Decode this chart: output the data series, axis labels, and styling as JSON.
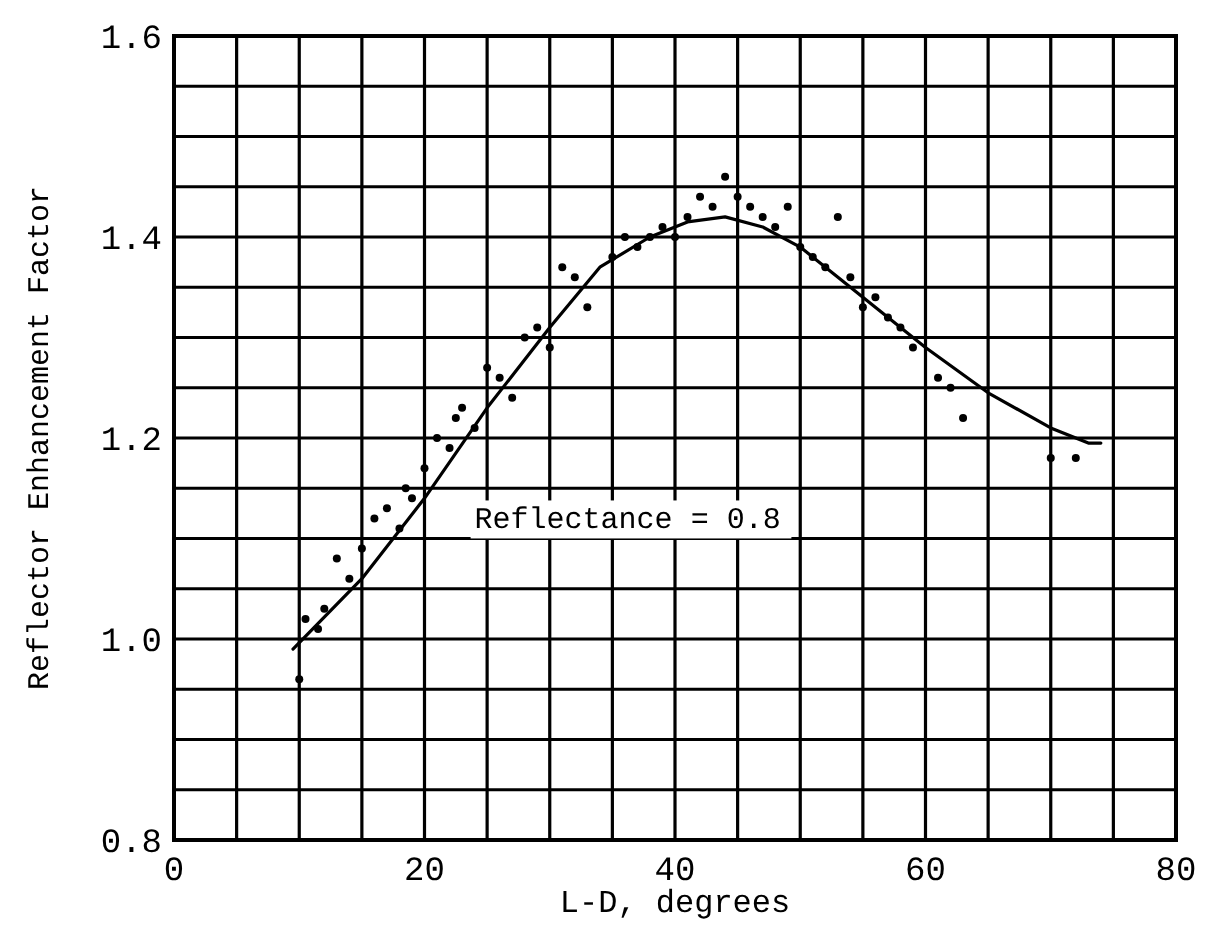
{
  "chart_data": {
    "type": "line",
    "xlabel": "L-D, degrees",
    "ylabel": "Reflector Enhancement Factor",
    "xlim": [
      0,
      80
    ],
    "ylim": [
      0.8,
      1.6
    ],
    "xticks": [
      0,
      {
        "value": 5,
        "label": null
      },
      {
        "value": 10,
        "label": null
      },
      {
        "value": 15,
        "label": null
      },
      20,
      {
        "value": 25,
        "label": null
      },
      {
        "value": 30,
        "label": null
      },
      {
        "value": 35,
        "label": null
      },
      40,
      {
        "value": 45,
        "label": null
      },
      {
        "value": 50,
        "label": null
      },
      {
        "value": 55,
        "label": null
      },
      60,
      {
        "value": 65,
        "label": null
      },
      {
        "value": 70,
        "label": null
      },
      {
        "value": 75,
        "label": null
      },
      80
    ],
    "yticks": [
      {
        "value": 0.8,
        "label": "0.8"
      },
      {
        "value": 0.85,
        "label": null
      },
      {
        "value": 0.9,
        "label": null
      },
      {
        "value": 0.95,
        "label": null
      },
      {
        "value": 1.0,
        "label": "1.0"
      },
      {
        "value": 1.05,
        "label": null
      },
      {
        "value": 1.1,
        "label": null
      },
      {
        "value": 1.15,
        "label": null
      },
      {
        "value": 1.2,
        "label": "1.2"
      },
      {
        "value": 1.25,
        "label": null
      },
      {
        "value": 1.3,
        "label": null
      },
      {
        "value": 1.35,
        "label": null
      },
      {
        "value": 1.4,
        "label": "1.4"
      },
      {
        "value": 1.45,
        "label": null
      },
      {
        "value": 1.5,
        "label": null
      },
      {
        "value": 1.55,
        "label": null
      },
      {
        "value": 1.6,
        "label": "1.6"
      }
    ],
    "grid": true,
    "annotations": [
      "Reflectance = 0.8"
    ],
    "series": [
      {
        "color": "#000000",
        "marker": "none",
        "line_style": "solid",
        "x": [
          9.5,
          15,
          20,
          25,
          30,
          34,
          38,
          41,
          44,
          47,
          50,
          55,
          60,
          65,
          70,
          73,
          74
        ],
        "values": [
          0.99,
          1.06,
          1.14,
          1.23,
          1.31,
          1.37,
          1.4,
          1.415,
          1.42,
          1.41,
          1.39,
          1.34,
          1.29,
          1.245,
          1.21,
          1.195,
          1.195
        ]
      },
      {
        "type": "scatter",
        "color": "#000000",
        "marker": "circle",
        "x": [
          10,
          10.5,
          11.5,
          12,
          13,
          14,
          15,
          16,
          17,
          18,
          18.5,
          19,
          20,
          21,
          22,
          22.5,
          23,
          24,
          25,
          26,
          27,
          28,
          29,
          30,
          31,
          32,
          33,
          35,
          36,
          37,
          38,
          39,
          40,
          41,
          42,
          43,
          44,
          45,
          46,
          47,
          48,
          49,
          50,
          51,
          52,
          53,
          54,
          55,
          56,
          57,
          58,
          59,
          61,
          62,
          63,
          70,
          72
        ],
        "values": [
          0.96,
          1.02,
          1.01,
          1.03,
          1.08,
          1.06,
          1.09,
          1.12,
          1.13,
          1.11,
          1.15,
          1.14,
          1.17,
          1.2,
          1.19,
          1.22,
          1.23,
          1.21,
          1.27,
          1.26,
          1.24,
          1.3,
          1.31,
          1.29,
          1.37,
          1.36,
          1.33,
          1.38,
          1.4,
          1.39,
          1.4,
          1.41,
          1.4,
          1.42,
          1.44,
          1.43,
          1.46,
          1.44,
          1.43,
          1.42,
          1.41,
          1.43,
          1.39,
          1.38,
          1.37,
          1.42,
          1.36,
          1.33,
          1.34,
          1.32,
          1.31,
          1.29,
          1.26,
          1.25,
          1.22,
          1.18,
          1.18
        ]
      }
    ]
  }
}
